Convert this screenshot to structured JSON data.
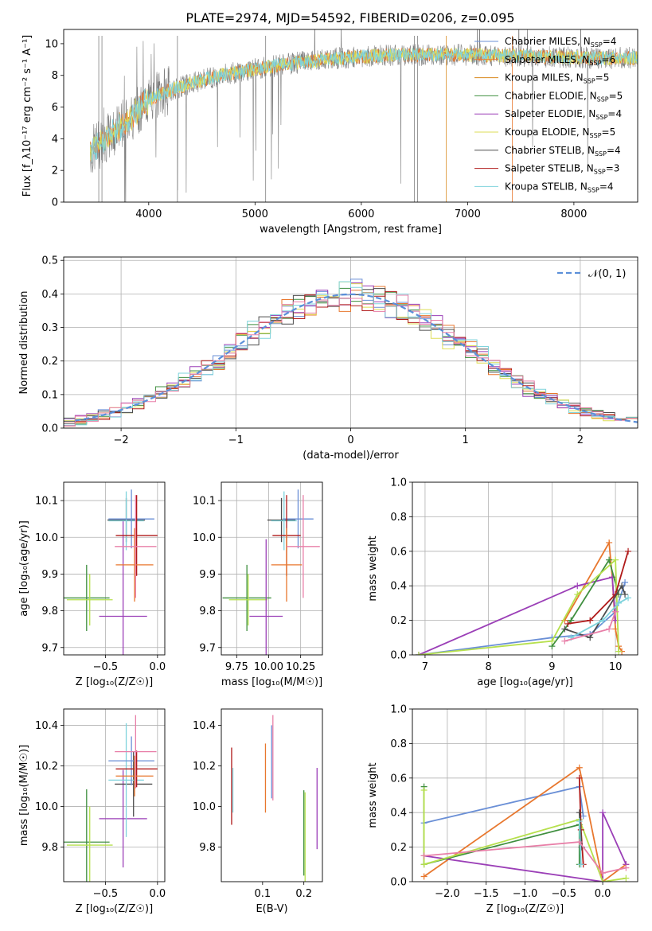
{
  "title": "PLATE=2974, MJD=54592, FIBERID=0206, z=0.095",
  "colors": {
    "chabrier_miles": "#6a8fd6",
    "salpeter_miles": "#e8772e",
    "kroupa_miles": "#d98a1e",
    "chabrier_elodie": "#3f8f3f",
    "salpeter_elodie": "#9b3fb7",
    "kroupa_elodie": "#dede55",
    "chabrier_stelib": "#4d4d4d",
    "salpeter_stelib": "#b01a1a",
    "kroupa_stelib": "#7fd3dc",
    "pink": "#e87fa8",
    "lime": "#b6e04d",
    "data": "#7f7f7f",
    "normal_curve": "#5b8fd9",
    "grid": "#b0b0b0"
  },
  "chart_data": [
    {
      "id": "spectrum",
      "type": "line",
      "xlabel": "wavelength [Angstrom, rest frame]",
      "ylabel": "Flux [f_λ10⁻¹⁷ erg cm⁻² s⁻¹ A⁻¹]",
      "xlim": [
        3200,
        8600
      ],
      "ylim": [
        0,
        10.9
      ],
      "xticks": [
        4000,
        5000,
        6000,
        7000,
        8000
      ],
      "yticks": [
        0,
        2,
        4,
        6,
        8,
        10
      ],
      "grid": false,
      "legend_position": "top-right",
      "continuum": {
        "x": [
          3450,
          3600,
          3800,
          3950,
          4100,
          4300,
          4600,
          5000,
          5400,
          5800,
          6200,
          6600,
          7000,
          7400,
          7800,
          8200,
          8600
        ],
        "y": [
          3.2,
          4.0,
          5.2,
          6.2,
          6.8,
          7.3,
          7.9,
          8.4,
          8.8,
          9.1,
          9.25,
          9.3,
          9.3,
          9.25,
          9.15,
          9.1,
          9.1
        ]
      },
      "legend": [
        {
          "label": "Chabrier MILES, N",
          "sub": "SSP",
          "suffix": "=4",
          "color_key": "chabrier_miles"
        },
        {
          "label": "Salpeter MILES, N",
          "sub": "SSP",
          "suffix": "=6",
          "color_key": "salpeter_miles"
        },
        {
          "label": "Kroupa MILES, N",
          "sub": "SSP",
          "suffix": "=5",
          "color_key": "kroupa_miles"
        },
        {
          "label": "Chabrier ELODIE, N",
          "sub": "SSP",
          "suffix": "=5",
          "color_key": "chabrier_elodie"
        },
        {
          "label": "Salpeter ELODIE, N",
          "sub": "SSP",
          "suffix": "=4",
          "color_key": "salpeter_elodie"
        },
        {
          "label": "Kroupa ELODIE, N",
          "sub": "SSP",
          "suffix": "=5",
          "color_key": "kroupa_elodie"
        },
        {
          "label": "Chabrier STELIB, N",
          "sub": "SSP",
          "suffix": "=4",
          "color_key": "chabrier_stelib"
        },
        {
          "label": "Salpeter STELIB, N",
          "sub": "SSP",
          "suffix": "=3",
          "color_key": "salpeter_stelib"
        },
        {
          "label": "Kroupa STELIB, N",
          "sub": "SSP",
          "suffix": "=4",
          "color_key": "kroupa_stelib"
        }
      ]
    },
    {
      "id": "residuals",
      "type": "line",
      "xlabel": "(data-model)/error",
      "ylabel": "Normed distribution",
      "xlim": [
        -2.5,
        2.5
      ],
      "ylim": [
        0,
        0.51
      ],
      "xticks": [
        -2,
        -1,
        0,
        1,
        2
      ],
      "yticks": [
        0.0,
        0.1,
        0.2,
        0.3,
        0.4,
        0.5
      ],
      "grid": true,
      "legend_position": "top-right",
      "legend_label": "𝒩(0, 1)",
      "normal": {
        "mean": 0,
        "sigma": 1
      }
    },
    {
      "id": "age_vs_Z",
      "type": "scatter",
      "xlabel": "Z [log₁₀(Z/Z☉)]",
      "ylabel": "age  [log₁₀(age/yr)]",
      "xlim": [
        -0.9,
        0.07
      ],
      "ylim": [
        9.68,
        10.15
      ],
      "xticks": [
        -0.5,
        0.0
      ],
      "yticks": [
        9.7,
        9.8,
        9.9,
        10.0,
        10.1
      ],
      "grid": true,
      "points": [
        {
          "x": -0.68,
          "y": 9.835,
          "xerr": 0.22,
          "yerr": 0.09,
          "color_key": "chabrier_elodie"
        },
        {
          "x": -0.65,
          "y": 9.83,
          "xerr": 0.22,
          "yerr": 0.07,
          "color_key": "lime"
        },
        {
          "x": -0.33,
          "y": 9.785,
          "xerr": 0.23,
          "yerr": 0.26,
          "color_key": "salpeter_elodie"
        },
        {
          "x": -0.3,
          "y": 10.047,
          "xerr": 0.18,
          "yerr": 0.06,
          "color_key": "chabrier_stelib"
        },
        {
          "x": -0.3,
          "y": 10.045,
          "xerr": 0.17,
          "yerr": 0.08,
          "color_key": "kroupa_stelib"
        },
        {
          "x": -0.25,
          "y": 10.05,
          "xerr": 0.22,
          "yerr": 0.08,
          "color_key": "chabrier_miles"
        },
        {
          "x": -0.2,
          "y": 10.005,
          "xerr": 0.2,
          "yerr": 0.11,
          "color_key": "salpeter_stelib"
        },
        {
          "x": -0.22,
          "y": 9.925,
          "xerr": 0.18,
          "yerr": 0.1,
          "color_key": "salpeter_miles"
        },
        {
          "x": -0.21,
          "y": 9.975,
          "xerr": 0.2,
          "yerr": 0.14,
          "color_key": "pink"
        }
      ]
    },
    {
      "id": "age_vs_mass",
      "type": "scatter",
      "xlabel": "mass [log₁₀(M/M☉)]",
      "ylabel": "",
      "xlim": [
        9.63,
        10.42
      ],
      "ylim": [
        9.68,
        10.15
      ],
      "xticks": [
        9.75,
        10.0,
        10.25
      ],
      "tick_labels": [
        "9.75",
        "10.00",
        "10.25"
      ],
      "yticks": [
        9.7,
        9.8,
        9.9,
        10.0,
        10.1
      ],
      "grid": true,
      "points": [
        {
          "x": 9.83,
          "y": 9.835,
          "xerr": 0.19,
          "yerr": 0.09,
          "color_key": "chabrier_elodie"
        },
        {
          "x": 9.84,
          "y": 9.83,
          "xerr": 0.15,
          "yerr": 0.07,
          "color_key": "lime"
        },
        {
          "x": 9.98,
          "y": 9.785,
          "xerr": 0.13,
          "yerr": 0.21,
          "color_key": "salpeter_elodie"
        },
        {
          "x": 10.1,
          "y": 10.047,
          "xerr": 0.11,
          "yerr": 0.06,
          "color_key": "chabrier_stelib"
        },
        {
          "x": 10.12,
          "y": 10.045,
          "xerr": 0.1,
          "yerr": 0.08,
          "color_key": "kroupa_stelib"
        },
        {
          "x": 10.23,
          "y": 10.05,
          "xerr": 0.12,
          "yerr": 0.08,
          "color_key": "chabrier_miles"
        },
        {
          "x": 10.14,
          "y": 10.005,
          "xerr": 0.11,
          "yerr": 0.11,
          "color_key": "salpeter_stelib"
        },
        {
          "x": 10.14,
          "y": 9.925,
          "xerr": 0.12,
          "yerr": 0.1,
          "color_key": "salpeter_miles"
        },
        {
          "x": 10.27,
          "y": 9.975,
          "xerr": 0.13,
          "yerr": 0.14,
          "color_key": "pink"
        }
      ]
    },
    {
      "id": "weights_vs_age",
      "type": "line",
      "xlabel": "age  [log₁₀(age/yr)]",
      "ylabel": "mass weight",
      "xlim": [
        6.8,
        10.35
      ],
      "ylim": [
        0,
        1.0
      ],
      "xticks": [
        7,
        8,
        9,
        10
      ],
      "yticks": [
        0.0,
        0.2,
        0.4,
        0.6,
        0.8,
        1.0
      ],
      "grid": true,
      "series": [
        {
          "color_key": "chabrier_miles",
          "x": [
            6.9,
            9.0,
            9.6,
            10.0,
            10.15
          ],
          "y": [
            0.0,
            0.1,
            0.12,
            0.25,
            0.42
          ]
        },
        {
          "color_key": "salpeter_miles",
          "x": [
            9.2,
            9.9,
            9.95,
            10.0,
            10.05,
            10.1
          ],
          "y": [
            0.2,
            0.65,
            0.45,
            0.15,
            0.05,
            0.02
          ]
        },
        {
          "color_key": "salpeter_elodie",
          "x": [
            6.9,
            9.4,
            9.95,
            10.0
          ],
          "y": [
            0.0,
            0.4,
            0.45,
            0.2
          ]
        },
        {
          "color_key": "chabrier_elodie",
          "x": [
            9.0,
            9.3,
            9.9,
            10.05
          ],
          "y": [
            0.05,
            0.2,
            0.55,
            0.35
          ]
        },
        {
          "color_key": "lime",
          "x": [
            6.9,
            9.0,
            9.4,
            10.0,
            10.05
          ],
          "y": [
            0.0,
            0.08,
            0.35,
            0.55,
            0.02
          ]
        },
        {
          "color_key": "salpeter_stelib",
          "x": [
            9.25,
            9.6,
            10.0,
            10.2
          ],
          "y": [
            0.18,
            0.2,
            0.35,
            0.6
          ]
        },
        {
          "color_key": "chabrier_stelib",
          "x": [
            9.2,
            9.6,
            10.1,
            10.15
          ],
          "y": [
            0.15,
            0.1,
            0.4,
            0.35
          ]
        },
        {
          "color_key": "kroupa_stelib",
          "x": [
            9.3,
            9.8,
            10.05,
            10.2
          ],
          "y": [
            0.1,
            0.2,
            0.3,
            0.33
          ]
        },
        {
          "color_key": "pink",
          "x": [
            9.2,
            9.9,
            10.0
          ],
          "y": [
            0.08,
            0.15,
            0.25
          ]
        }
      ]
    },
    {
      "id": "mass_vs_Z",
      "type": "scatter",
      "xlabel": "Z [log₁₀(Z/Z☉)]",
      "ylabel": "mass [log₁₀(M/M☉)]",
      "xlim": [
        -0.9,
        0.07
      ],
      "ylim": [
        9.63,
        10.48
      ],
      "xticks": [
        -0.5,
        0.0
      ],
      "yticks": [
        9.8,
        10.0,
        10.2,
        10.4
      ],
      "grid": true,
      "points": [
        {
          "x": -0.68,
          "y": 9.825,
          "xerr": 0.22,
          "yerr": 0.26,
          "color_key": "chabrier_elodie"
        },
        {
          "x": -0.65,
          "y": 9.81,
          "xerr": 0.22,
          "yerr": 0.19,
          "color_key": "lime"
        },
        {
          "x": -0.33,
          "y": 9.94,
          "xerr": 0.23,
          "yerr": 0.24,
          "color_key": "salpeter_elodie"
        },
        {
          "x": -0.23,
          "y": 10.11,
          "xerr": 0.18,
          "yerr": 0.16,
          "color_key": "chabrier_stelib"
        },
        {
          "x": -0.3,
          "y": 10.13,
          "xerr": 0.17,
          "yerr": 0.28,
          "color_key": "kroupa_stelib"
        },
        {
          "x": -0.25,
          "y": 10.225,
          "xerr": 0.22,
          "yerr": 0.12,
          "color_key": "chabrier_miles"
        },
        {
          "x": -0.2,
          "y": 10.185,
          "xerr": 0.2,
          "yerr": 0.09,
          "color_key": "salpeter_stelib"
        },
        {
          "x": -0.22,
          "y": 10.15,
          "xerr": 0.18,
          "yerr": 0.1,
          "color_key": "salpeter_miles"
        },
        {
          "x": -0.21,
          "y": 10.27,
          "xerr": 0.2,
          "yerr": 0.18,
          "color_key": "pink"
        }
      ]
    },
    {
      "id": "mass_vs_ebv",
      "type": "scatter",
      "xlabel": "E(B-V)",
      "ylabel": "",
      "xlim": [
        0.0,
        0.245
      ],
      "ylim": [
        9.63,
        10.48
      ],
      "xticks": [
        0.1,
        0.2
      ],
      "yticks": [
        9.8,
        10.0,
        10.2,
        10.4
      ],
      "grid": false,
      "points": [
        {
          "x": 0.025,
          "y": 10.1,
          "yerr": 0.19,
          "color_key": "salpeter_stelib"
        },
        {
          "x": 0.028,
          "y": 10.08,
          "yerr": 0.11,
          "color_key": "kroupa_stelib"
        },
        {
          "x": 0.107,
          "y": 10.14,
          "yerr": 0.17,
          "color_key": "salpeter_miles"
        },
        {
          "x": 0.122,
          "y": 10.22,
          "yerr": 0.18,
          "color_key": "chabrier_miles"
        },
        {
          "x": 0.125,
          "y": 10.24,
          "yerr": 0.21,
          "color_key": "pink"
        },
        {
          "x": 0.2,
          "y": 9.87,
          "yerr": 0.21,
          "color_key": "chabrier_elodie"
        },
        {
          "x": 0.203,
          "y": 9.85,
          "yerr": 0.22,
          "color_key": "lime"
        },
        {
          "x": 0.232,
          "y": 9.99,
          "yerr": 0.2,
          "color_key": "salpeter_elodie"
        }
      ]
    },
    {
      "id": "weights_vs_Z",
      "type": "line",
      "xlabel": "Z [log₁₀(Z/Z☉)]",
      "ylabel": "mass weight",
      "xlim": [
        -2.45,
        0.45
      ],
      "ylim": [
        0,
        1.0
      ],
      "xticks": [
        -2.0,
        -1.5,
        -1.0,
        -0.5,
        0.0
      ],
      "yticks": [
        0.0,
        0.2,
        0.4,
        0.6,
        0.8,
        1.0
      ],
      "grid": true,
      "series": [
        {
          "color_key": "chabrier_miles",
          "x": [
            -2.3,
            -0.3,
            -0.25
          ],
          "y": [
            0.34,
            0.55,
            0.38
          ]
        },
        {
          "color_key": "salpeter_miles",
          "x": [
            -2.3,
            -0.3,
            0.0,
            0.3
          ],
          "y": [
            0.03,
            0.66,
            0.0,
            0.1
          ]
        },
        {
          "color_key": "salpeter_elodie",
          "x": [
            -2.3,
            0.0,
            0.0,
            0.3
          ],
          "y": [
            0.15,
            0.0,
            0.4,
            0.1
          ]
        },
        {
          "color_key": "chabrier_elodie",
          "x": [
            -2.3,
            -2.3,
            -0.3,
            -0.3
          ],
          "y": [
            0.55,
            0.1,
            0.33,
            0.1
          ]
        },
        {
          "color_key": "lime",
          "x": [
            -2.3,
            -2.3,
            -0.3,
            0.0,
            0.3
          ],
          "y": [
            0.53,
            0.1,
            0.36,
            0.0,
            0.02
          ]
        },
        {
          "color_key": "salpeter_stelib",
          "x": [
            -0.3,
            -0.28,
            -0.25
          ],
          "y": [
            0.6,
            0.3,
            0.1
          ]
        },
        {
          "color_key": "chabrier_stelib",
          "x": [
            -0.3,
            -0.27
          ],
          "y": [
            0.4,
            0.2
          ]
        },
        {
          "color_key": "kroupa_stelib",
          "x": [
            -0.3,
            -0.28
          ],
          "y": [
            0.35,
            0.1
          ]
        },
        {
          "color_key": "pink",
          "x": [
            -2.3,
            -0.3,
            0.0,
            0.3
          ],
          "y": [
            0.15,
            0.23,
            0.05,
            0.08
          ]
        }
      ]
    }
  ]
}
